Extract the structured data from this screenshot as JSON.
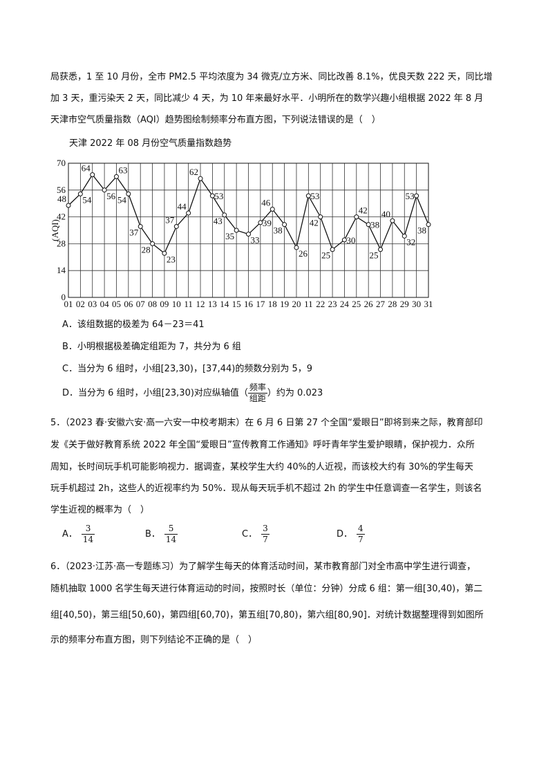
{
  "intro_lines": [
    "局获悉，1 至 10 月份，全市 PM2.5 平均浓度为 34 微克/立方米、同比改善 8.1%，优良天数 222 天，同比增",
    "加 3 天，重污染天 2 天，同比减少 4 天，为 10 年来最好水平．小明所在的数学兴趣小组根据 2022 年 8 月",
    "天津市空气质量指数（AQI）趋势图绘制频率分布直方图，下列说法错误的是（　）"
  ],
  "q4_options": {
    "A": "A．该组数据的极差为 64－23＝41",
    "B": "B．小明根据极差确定组距为 7，共分为 6 组",
    "C": "C．当分为 6 组时，小组[23,30)，[37,44)的频数分别为 5，9",
    "D_pre": "D．当分为 6 组时，小组[23,30)对应纵轴值（",
    "D_num": "频率",
    "D_den": "组距",
    "D_post": "）约为 0.023"
  },
  "chart_data": {
    "type": "line",
    "title": "天津 2022 年 08 月份空气质量指数趋势",
    "ylabel": "(AQI)",
    "xlabel": "",
    "ylim": [
      0,
      70
    ],
    "yticks": [
      0,
      14,
      28,
      42,
      56,
      70
    ],
    "categories": [
      "01",
      "02",
      "03",
      "04",
      "05",
      "06",
      "07",
      "08",
      "09",
      "10",
      "11",
      "12",
      "13",
      "14",
      "15",
      "16",
      "17",
      "18",
      "19",
      "20",
      "11",
      "22",
      "23",
      "24",
      "25",
      "26",
      "27",
      "28",
      "29",
      "30",
      "31"
    ],
    "values": [
      48,
      54,
      64,
      56,
      63,
      54,
      37,
      28,
      23,
      37,
      44,
      62,
      53,
      43,
      35,
      33,
      39,
      46,
      38,
      26,
      53,
      42,
      25,
      30,
      42,
      38,
      25,
      40,
      32,
      53,
      38
    ],
    "grid": true,
    "line_color": "#111111"
  },
  "q5": {
    "lines": [
      "5．（2023 春·安徽六安·高一六安一中校考期末）在 6 月 6 日第 27 个全国“爱眼日”即将到来之际，教育部印",
      "发《关于做好教育系统 2022 年全国“爱眼日”宣传教育工作通知》呼吁青年学生爱护眼睛，保护视力．众所",
      "周知，长时间玩手机可能影响视力．据调查，某校学生大约 40%的人近视，而该校大约有 30%的学生每天",
      "玩手机超过 2h，这些人的近视率约为 50%．现从每天玩手机不超过 2h 的学生中任意调查一名学生，则该名",
      "学生近视的概率为（　）"
    ],
    "options": [
      {
        "label": "A．",
        "num": "3",
        "den": "14"
      },
      {
        "label": "B．",
        "num": "5",
        "den": "14"
      },
      {
        "label": "C．",
        "num": "3",
        "den": "7"
      },
      {
        "label": "D．",
        "num": "4",
        "den": "7"
      }
    ]
  },
  "q6": {
    "lines": [
      "6．（2023·江苏·高一专题练习）为了解学生每天的体育活动时间，某市教育部门对全市高中学生进行调查，",
      "随机抽取 1000 名学生每天进行体育运动的时间，按照时长（单位：分钟）分成 6 组：第一组[30,40)，第二",
      "组[40,50)，第三组[50,60)，第四组[60,70)，第五组[70,80)，第六组[80,90]．对统计数据整理得到如图所",
      "示的频率分布直方图，则下列结论不正确的是（　）"
    ]
  }
}
